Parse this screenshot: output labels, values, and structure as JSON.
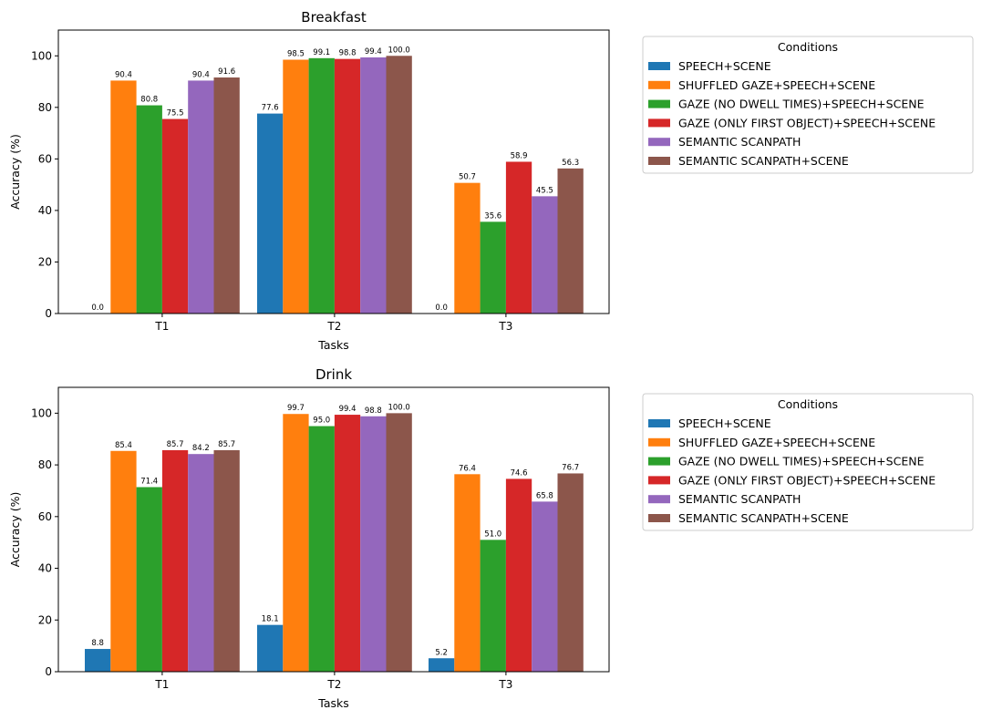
{
  "colors": [
    "#1f77b4",
    "#ff7f0e",
    "#2ca02c",
    "#d62728",
    "#9467bd",
    "#8c564b"
  ],
  "chart_data": [
    {
      "type": "bar",
      "title": "Breakfast",
      "xlabel": "Tasks",
      "ylabel": "Accuracy (%)",
      "ylim": [
        0,
        110
      ],
      "yticks": [
        "0",
        "20",
        "40",
        "60",
        "80",
        "100"
      ],
      "categories": [
        "T1",
        "T2",
        "T3"
      ],
      "legend_title": "Conditions",
      "legend_position": "outside-right-top",
      "series": [
        {
          "name": "SPEECH+SCENE",
          "values": [
            0.0,
            77.6,
            0.0
          ],
          "labels": [
            "0.0",
            "77.6",
            "0.0"
          ]
        },
        {
          "name": "SHUFFLED GAZE+SPEECH+SCENE",
          "values": [
            90.4,
            98.5,
            50.7
          ],
          "labels": [
            "90.4",
            "98.5",
            "50.7"
          ]
        },
        {
          "name": "GAZE (NO DWELL TIMES)+SPEECH+SCENE",
          "values": [
            80.8,
            99.1,
            35.6
          ],
          "labels": [
            "80.8",
            "99.1",
            "35.6"
          ]
        },
        {
          "name": "GAZE (ONLY FIRST OBJECT)+SPEECH+SCENE",
          "values": [
            75.5,
            98.8,
            58.9
          ],
          "labels": [
            "75.5",
            "98.8",
            "58.9"
          ]
        },
        {
          "name": "SEMANTIC SCANPATH",
          "values": [
            90.4,
            99.4,
            45.5
          ],
          "labels": [
            "90.4",
            "99.4",
            "45.5"
          ]
        },
        {
          "name": "SEMANTIC SCANPATH+SCENE",
          "values": [
            91.6,
            100.0,
            56.3
          ],
          "labels": [
            "91.6",
            "100.0",
            "56.3"
          ]
        }
      ]
    },
    {
      "type": "bar",
      "title": "Drink",
      "xlabel": "Tasks",
      "ylabel": "Accuracy (%)",
      "ylim": [
        0,
        110
      ],
      "yticks": [
        "0",
        "20",
        "40",
        "60",
        "80",
        "100"
      ],
      "categories": [
        "T1",
        "T2",
        "T3"
      ],
      "legend_title": "Conditions",
      "legend_position": "outside-right-top",
      "series": [
        {
          "name": "SPEECH+SCENE",
          "values": [
            8.8,
            18.1,
            5.2
          ],
          "labels": [
            "8.8",
            "18.1",
            "5.2"
          ]
        },
        {
          "name": "SHUFFLED GAZE+SPEECH+SCENE",
          "values": [
            85.4,
            99.7,
            76.4
          ],
          "labels": [
            "85.4",
            "99.7",
            "76.4"
          ]
        },
        {
          "name": "GAZE (NO DWELL TIMES)+SPEECH+SCENE",
          "values": [
            71.4,
            95.0,
            51.0
          ],
          "labels": [
            "71.4",
            "95.0",
            "51.0"
          ]
        },
        {
          "name": "GAZE (ONLY FIRST OBJECT)+SPEECH+SCENE",
          "values": [
            85.7,
            99.4,
            74.6
          ],
          "labels": [
            "85.7",
            "99.4",
            "74.6"
          ]
        },
        {
          "name": "SEMANTIC SCANPATH",
          "values": [
            84.2,
            98.8,
            65.8
          ],
          "labels": [
            "84.2",
            "98.8",
            "65.8"
          ]
        },
        {
          "name": "SEMANTIC SCANPATH+SCENE",
          "values": [
            85.7,
            100.0,
            76.7
          ],
          "labels": [
            "85.7",
            "100.0",
            "76.7"
          ]
        }
      ]
    }
  ]
}
